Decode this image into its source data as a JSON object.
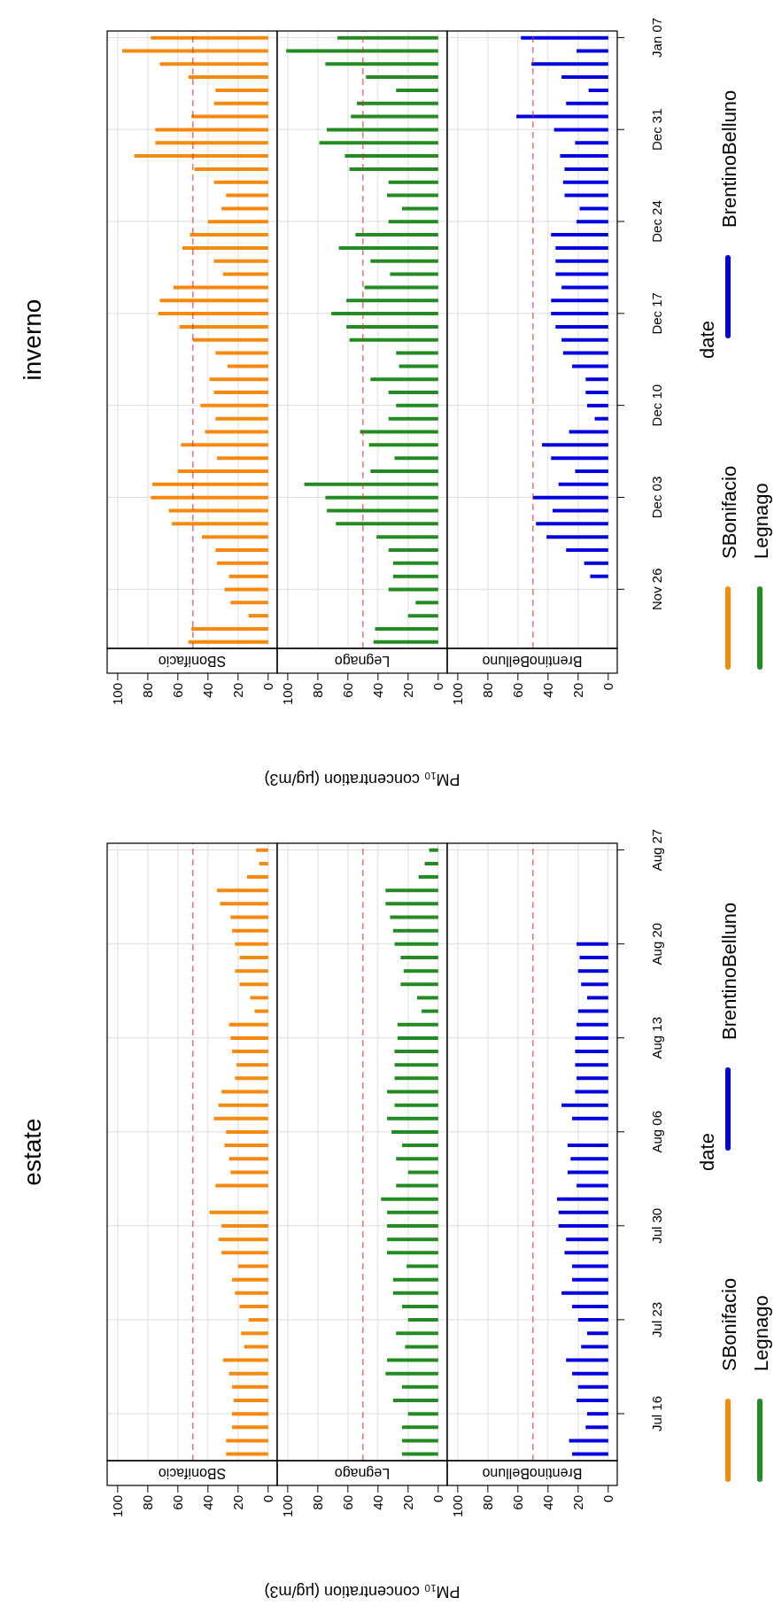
{
  "chart_data": [
    {
      "type": "bar",
      "orientation": "horizontal",
      "title": "inverno",
      "categories": [
        null,
        null,
        null,
        null,
        null,
        null,
        null,
        null,
        null,
        null,
        null,
        null,
        null,
        null,
        null,
        null,
        null,
        null,
        null,
        null,
        null,
        null,
        null,
        null,
        null,
        null,
        null,
        null,
        null,
        null,
        null,
        null,
        null,
        null,
        null,
        null,
        null,
        null,
        null,
        null,
        null,
        null,
        null,
        null,
        null,
        null,
        null
      ],
      "series": [
        {
          "name": "SBonifacio",
          "color": "#f7890f",
          "values": [
            78,
            97,
            72,
            53,
            35,
            36,
            51,
            75,
            75,
            89,
            49,
            36,
            28,
            31,
            40,
            52,
            57,
            36,
            30,
            63,
            72,
            73,
            59,
            50,
            35,
            27,
            39,
            36,
            45,
            35,
            42,
            58,
            34,
            60,
            77,
            78,
            66,
            64,
            44,
            35,
            34,
            26,
            29,
            25,
            13,
            51,
            53
          ]
        }
      ],
      "xlim": [
        107,
        -6
      ],
      "xticks": [
        0,
        20,
        40,
        60,
        80,
        100
      ],
      "ref_lines": [
        {
          "axis": "x",
          "value": 50,
          "color": "#e03030",
          "line_style": "dashed"
        }
      ],
      "grid": true,
      "legend": "right",
      "tick_labels": "x"
    },
    {
      "type": "bar",
      "orientation": "horizontal",
      "xlabel": "PM₁₀ concentration (µg/m3)",
      "categories": [
        null,
        null,
        null,
        null,
        null,
        null,
        null,
        null,
        null,
        null,
        null,
        null,
        null,
        null,
        null,
        null,
        null,
        null,
        null,
        null,
        null,
        null,
        null,
        null,
        null,
        null,
        null,
        null,
        null,
        null,
        null,
        null,
        null,
        null,
        null,
        null,
        null,
        null,
        null,
        null,
        null,
        null,
        null,
        null,
        null,
        null,
        null
      ],
      "series": [
        {
          "name": "Legnago",
          "color": "#228b22",
          "values": [
            67,
            101,
            75,
            48,
            28,
            54,
            58,
            74,
            79,
            62,
            59,
            33,
            34,
            24,
            33,
            55,
            66,
            45,
            32,
            49,
            61,
            71,
            61,
            59,
            28,
            26,
            45,
            33,
            28,
            33,
            52,
            46,
            29,
            45,
            89,
            75,
            74,
            68,
            41,
            33,
            30,
            30,
            33,
            15,
            20,
            42,
            43
          ]
        }
      ],
      "xlim": [
        107,
        -6
      ],
      "xticks": [
        0,
        20,
        40,
        60,
        80,
        100
      ],
      "ref_lines": [
        {
          "axis": "x",
          "value": 50,
          "color": "#e03030",
          "line_style": "dashed"
        }
      ],
      "grid": true,
      "legend": "right",
      "tick_labels": "x"
    },
    {
      "type": "bar",
      "orientation": "horizontal",
      "ylabel": "date",
      "categories": [
        "Jan 07",
        null,
        null,
        null,
        null,
        null,
        null,
        "Dec 31",
        null,
        null,
        null,
        null,
        null,
        null,
        "Dec 24",
        null,
        null,
        null,
        null,
        null,
        null,
        "Dec 17",
        null,
        null,
        null,
        null,
        null,
        null,
        "Dec 10",
        null,
        null,
        null,
        null,
        null,
        null,
        "Dec 03",
        null,
        null,
        null,
        null,
        null,
        null,
        "Nov 26",
        null,
        null,
        null,
        null
      ],
      "series": [
        {
          "name": "BrentinoBelluno",
          "color": "#0000e0",
          "values": [
            58,
            21,
            51,
            31,
            13,
            28,
            61,
            36,
            22,
            32,
            29,
            30,
            29,
            19,
            21,
            38,
            35,
            35,
            35,
            31,
            38,
            38,
            35,
            31,
            30,
            24,
            15,
            15,
            14,
            9,
            26,
            44,
            38,
            22,
            33,
            50,
            37,
            48,
            41,
            28,
            16,
            12,
            null,
            null,
            null,
            null,
            null
          ]
        }
      ],
      "xlim": [
        107,
        -6
      ],
      "xticks": [
        0,
        20,
        40,
        60,
        80,
        100
      ],
      "ref_lines": [
        {
          "axis": "x",
          "value": 50,
          "color": "#e03030",
          "line_style": "dashed"
        }
      ],
      "grid": true,
      "legend": "right"
    },
    {
      "type": "bar",
      "orientation": "horizontal",
      "title": "estate",
      "categories": [
        null,
        null,
        null,
        null,
        null,
        null,
        null,
        null,
        null,
        null,
        null,
        null,
        null,
        null,
        null,
        null,
        null,
        null,
        null,
        null,
        null,
        null,
        null,
        null,
        null,
        null,
        null,
        null,
        null,
        null,
        null,
        null,
        null,
        null,
        null,
        null,
        null,
        null,
        null,
        null,
        null,
        null,
        null,
        null,
        null,
        null
      ],
      "series": [
        {
          "name": "SBonifacio",
          "color": "#f7890f",
          "values": [
            8,
            6,
            14,
            34,
            32,
            25,
            24,
            22,
            19,
            22,
            19,
            12,
            9,
            26,
            25,
            24,
            21,
            22,
            31,
            33,
            36,
            28,
            29,
            26,
            25,
            35,
            null,
            39,
            31,
            33,
            31,
            20,
            24,
            22,
            19,
            13,
            18,
            16,
            30,
            26,
            24,
            23,
            24,
            24,
            28,
            28
          ]
        }
      ],
      "xlim": [
        107,
        -6
      ],
      "xticks": [
        0,
        20,
        40,
        60,
        80,
        100
      ],
      "ref_lines": [
        {
          "axis": "x",
          "value": 50,
          "color": "#e03030",
          "line_style": "dashed"
        }
      ],
      "grid": true,
      "legend": "right",
      "tick_labels": "x"
    },
    {
      "type": "bar",
      "orientation": "horizontal",
      "xlabel": "PM₁₀ concentration (µg/m3)",
      "categories": [
        null,
        null,
        null,
        null,
        null,
        null,
        null,
        null,
        null,
        null,
        null,
        null,
        null,
        null,
        null,
        null,
        null,
        null,
        null,
        null,
        null,
        null,
        null,
        null,
        null,
        null,
        null,
        null,
        null,
        null,
        null,
        null,
        null,
        null,
        null,
        null,
        null,
        null,
        null,
        null,
        null,
        null,
        null,
        null,
        null,
        null
      ],
      "series": [
        {
          "name": "Legnago",
          "color": "#228b22",
          "values": [
            6,
            9,
            13,
            35,
            35,
            32,
            30,
            29,
            25,
            23,
            25,
            14,
            11,
            27,
            27,
            29,
            29,
            29,
            34,
            29,
            34,
            31,
            24,
            28,
            20,
            28,
            38,
            34,
            34,
            34,
            34,
            21,
            30,
            30,
            24,
            20,
            28,
            22,
            34,
            35,
            24,
            30,
            20,
            24,
            24,
            24
          ]
        }
      ],
      "xlim": [
        107,
        -6
      ],
      "xticks": [
        0,
        20,
        40,
        60,
        80,
        100
      ],
      "ref_lines": [
        {
          "axis": "x",
          "value": 50,
          "color": "#e03030",
          "line_style": "dashed"
        }
      ],
      "grid": true,
      "legend": "right",
      "tick_labels": "x"
    },
    {
      "type": "bar",
      "orientation": "horizontal",
      "ylabel": "date",
      "categories": [
        "Aug 27",
        null,
        null,
        null,
        null,
        null,
        null,
        "Aug 20",
        null,
        null,
        null,
        null,
        null,
        null,
        "Aug 13",
        null,
        null,
        null,
        null,
        null,
        null,
        "Aug 06",
        null,
        null,
        null,
        null,
        null,
        null,
        "Jul 30",
        null,
        null,
        null,
        null,
        null,
        null,
        "Jul 23",
        null,
        null,
        null,
        null,
        null,
        null,
        "Jul 16",
        null,
        null,
        null
      ],
      "series": [
        {
          "name": "BrentinoBelluno",
          "color": "#0000e0",
          "values": [
            null,
            null,
            null,
            null,
            null,
            null,
            null,
            21,
            19,
            20,
            18,
            14,
            20,
            21,
            22,
            22,
            22,
            21,
            22,
            31,
            24,
            null,
            27,
            25,
            27,
            21,
            34,
            33,
            33,
            28,
            29,
            24,
            24,
            31,
            24,
            20,
            14,
            18,
            28,
            24,
            20,
            21,
            14,
            15,
            26,
            24
          ]
        }
      ],
      "xlim": [
        107,
        -6
      ],
      "xticks": [
        0,
        20,
        40,
        60,
        80,
        100
      ],
      "ref_lines": [
        {
          "axis": "x",
          "value": 50,
          "color": "#e03030",
          "line_style": "dashed"
        }
      ],
      "grid": true,
      "legend": "right"
    }
  ]
}
